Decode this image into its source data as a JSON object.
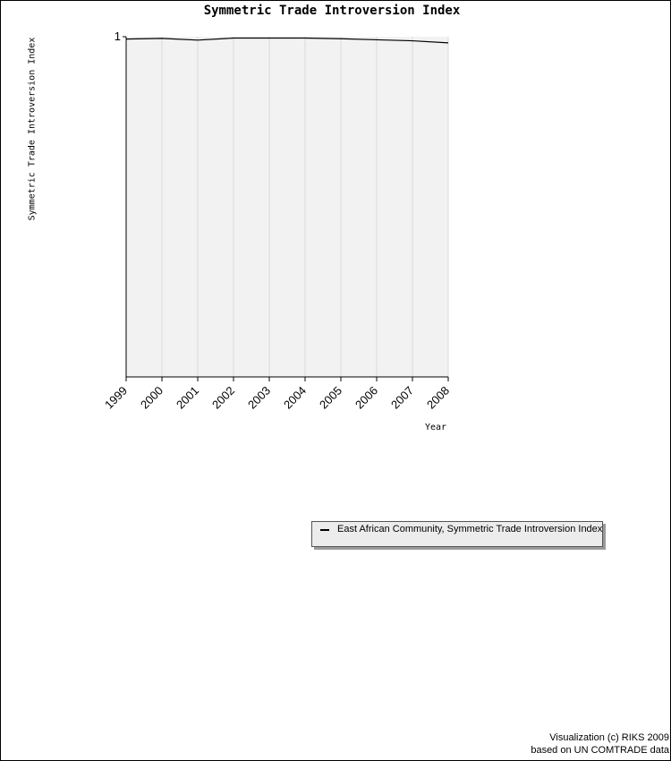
{
  "chart_data": {
    "type": "line",
    "title": "Symmetric Trade Introversion Index",
    "xlabel": "Year",
    "ylabel": "Symmetric Trade Introversion Index",
    "x": [
      "1999",
      "2000",
      "2001",
      "2002",
      "2003",
      "2004",
      "2005",
      "2006",
      "2007",
      "2008"
    ],
    "y_ticks": [
      "1"
    ],
    "ylim": [
      0,
      1
    ],
    "grid": "vertical",
    "series": [
      {
        "name": "East African Community, Symmetric Trade Introversion Index",
        "color": "#000000",
        "values": [
          0.993,
          0.995,
          0.99,
          0.996,
          0.996,
          0.996,
          0.994,
          0.991,
          0.988,
          0.982
        ]
      }
    ]
  },
  "legend": {
    "label": "East African Community, Symmetric Trade Introversion Index"
  },
  "credits": {
    "line1": "Visualization (c) RIKS 2009",
    "line2": "based on UN COMTRADE data"
  },
  "colors": {
    "plot_background": "#f2f2f2",
    "grid": "#d9d9d9",
    "axis": "#000000"
  }
}
